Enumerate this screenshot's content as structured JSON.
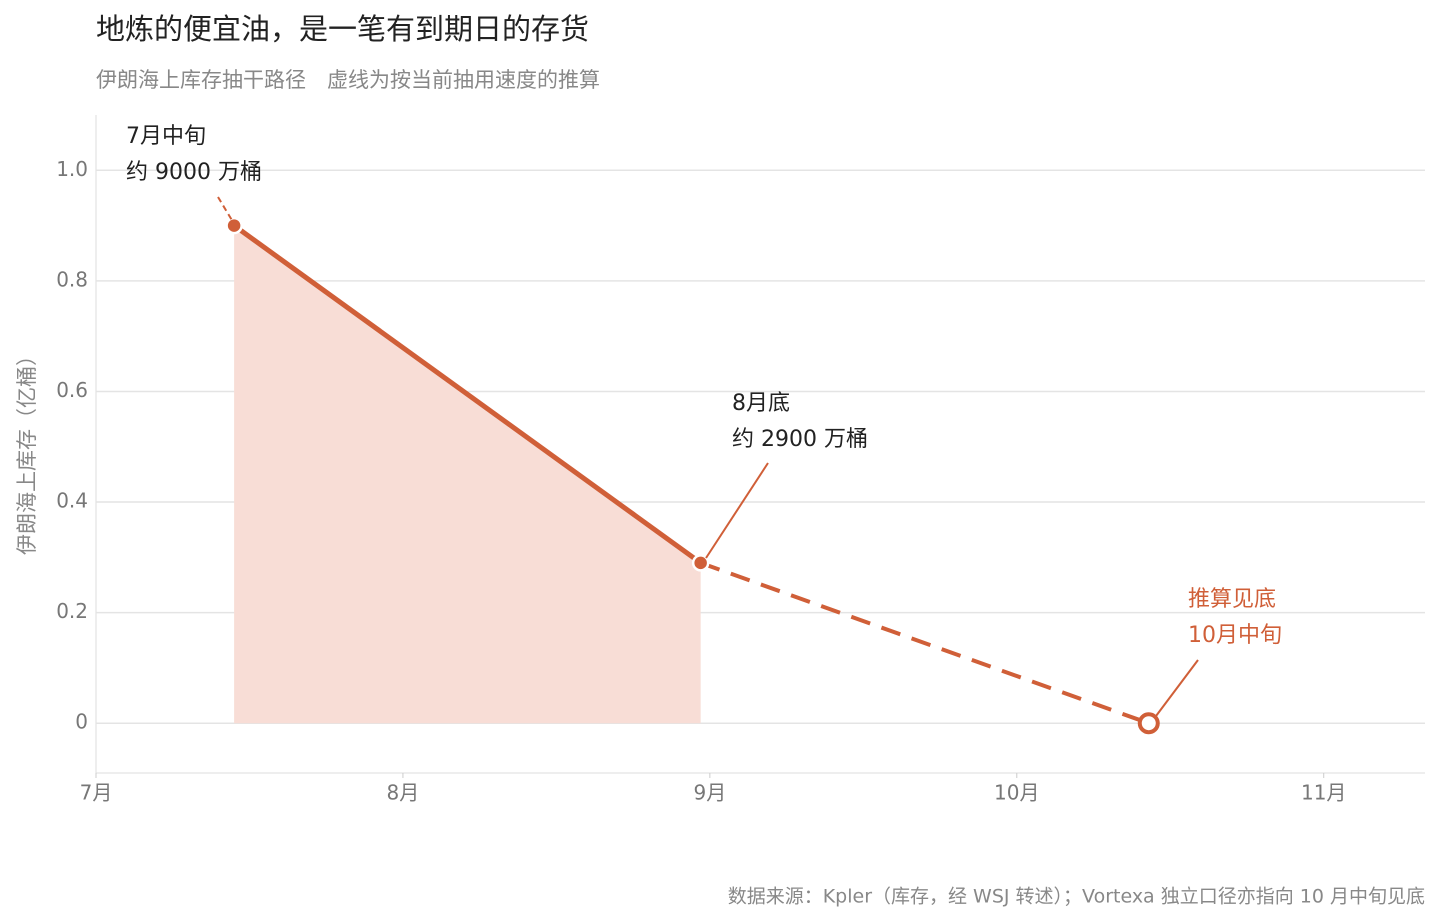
{
  "chart_data": {
    "type": "line",
    "title": "地炼的便宜油，是一笔有到期日的存货",
    "subtitle": "伊朗海上库存抽干路径　虚线为按当前抽用速度的推算",
    "y_label": "伊朗海上库存（亿桶）",
    "source": "数据来源：Kpler（库存，经 WSJ 转述）；Vortexa 独立口径亦指向 10 月中旬见底",
    "x": [
      7.45,
      8.97,
      10.43
    ],
    "series": [
      {
        "color": "#d05f38",
        "style": "solid",
        "fill": "#f8ddd6",
        "values": [
          0.9,
          0.29,
          null
        ]
      },
      {
        "color": "#d05f38",
        "style": "dashed",
        "values": [
          null,
          0.29,
          0
        ]
      }
    ],
    "xlim": [
      7,
      11.33
    ],
    "xticks": [
      {
        "value": 7,
        "label": "7月"
      },
      {
        "value": 8,
        "label": "8月"
      },
      {
        "value": 9,
        "label": "9月"
      },
      {
        "value": 10,
        "label": "10月"
      },
      {
        "value": 11,
        "label": "11月"
      }
    ],
    "ylim": [
      -0.09,
      1.1
    ],
    "yticks": [
      0,
      0.2,
      0.4,
      0.6,
      0.8,
      {
        "value": 1,
        "label": "1.0"
      }
    ],
    "grid": true,
    "annotations": [
      {
        "lines": [
          "7月中旬",
          "约 9000 万桶"
        ],
        "color": "#222222"
      },
      {
        "lines": [
          "8月底",
          "约 2900 万桶"
        ],
        "color": "#222222"
      },
      {
        "lines": [
          "推算见底",
          "10月中旬"
        ],
        "color": "#d05f38"
      }
    ]
  }
}
